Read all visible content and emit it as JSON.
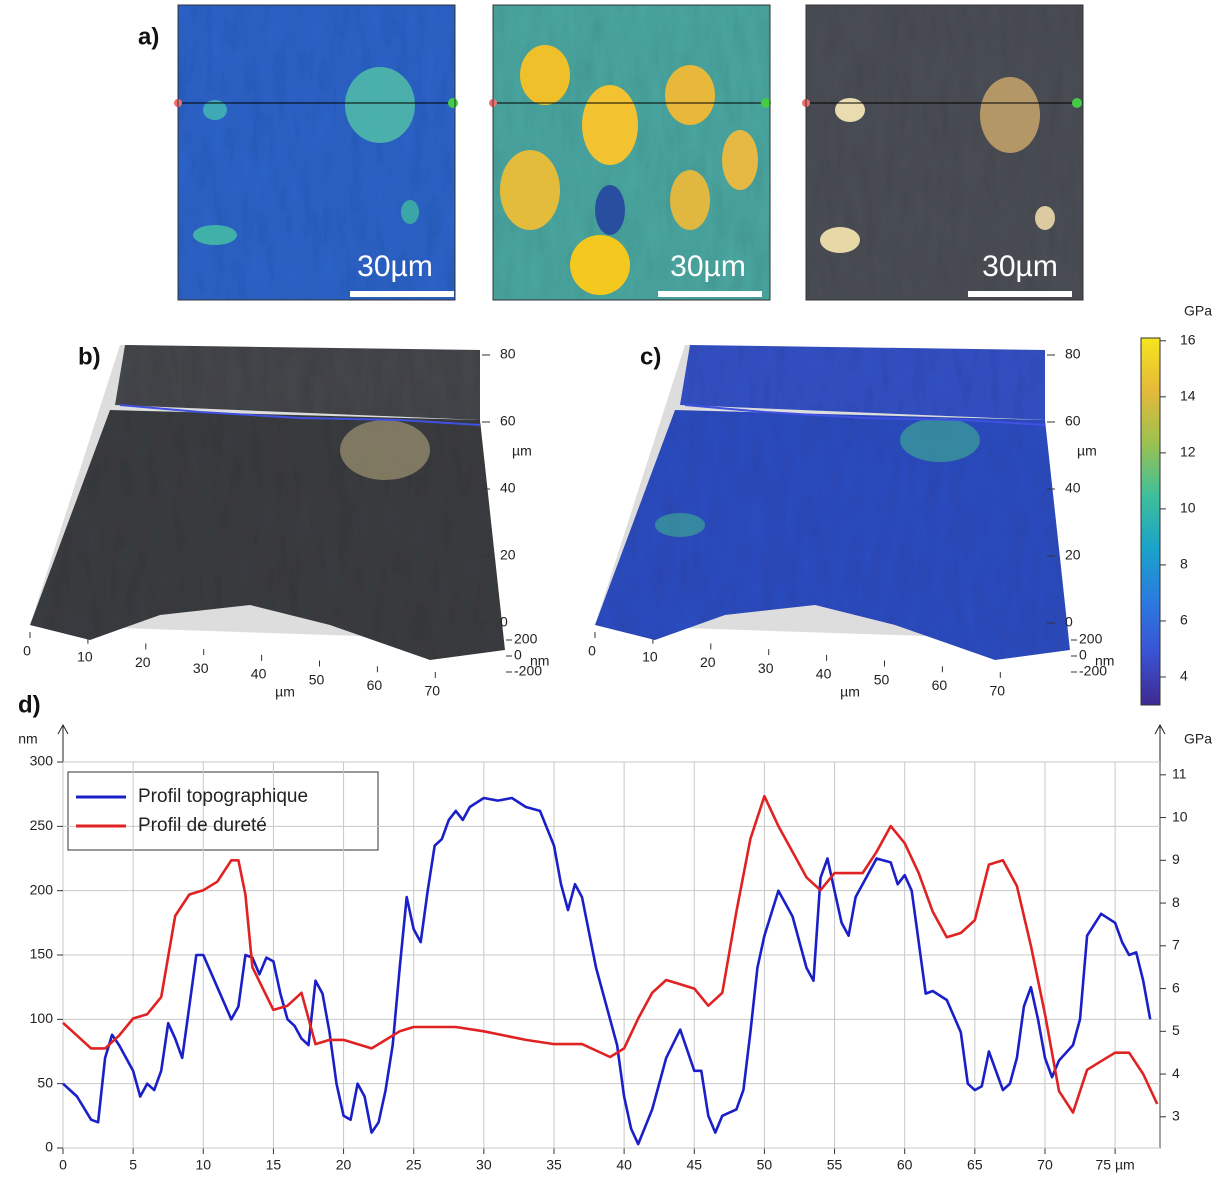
{
  "figure": {
    "panel_a": {
      "label": "a)",
      "scale_bars": [
        "30µm",
        "30µm",
        "30µm"
      ]
    },
    "panel_b": {
      "label": "b)",
      "x_ticks": [
        0,
        10,
        20,
        30,
        40,
        50,
        60,
        70
      ],
      "x_label": "µm",
      "y_ticks": [
        0,
        20,
        40,
        60,
        80
      ],
      "y_label": "µm",
      "z_ticks": [
        -200,
        0,
        200
      ],
      "z_label": "nm"
    },
    "panel_c": {
      "label": "c)",
      "x_ticks": [
        0,
        10,
        20,
        30,
        40,
        50,
        60,
        70
      ],
      "x_label": "µm",
      "y_ticks": [
        0,
        20,
        40,
        60,
        80
      ],
      "y_label": "µm",
      "z_ticks": [
        -200,
        0,
        200
      ],
      "z_label": "nm"
    },
    "panel_d": {
      "label": "d)"
    }
  },
  "chart_data": [
    {
      "type": "colorbar",
      "title": "GPa",
      "ylim": [
        3,
        16.1
      ],
      "yticks": [
        4,
        6,
        8,
        10,
        12,
        14,
        16
      ],
      "colors": [
        "#3e2a8f",
        "#3a53d4",
        "#2b7be0",
        "#1aa3c8",
        "#3fbf9a",
        "#9cc150",
        "#e5b93a",
        "#f6e51c"
      ]
    },
    {
      "type": "line",
      "y_label": "nm",
      "y2_label": "GPa",
      "xlim": [
        0,
        78.2
      ],
      "xticks": [
        0,
        5,
        10,
        15,
        20,
        25,
        30,
        35,
        40,
        45,
        50,
        55,
        60,
        65,
        70,
        {
          "value": 75,
          "label": "75 µm"
        }
      ],
      "ylim": [
        0,
        300
      ],
      "yticks": [
        0,
        50,
        100,
        150,
        200,
        250,
        300
      ],
      "y2lim": [
        2.27,
        11.3
      ],
      "y2ticks": [
        3,
        4,
        5,
        6,
        7,
        8,
        9,
        10,
        11
      ],
      "grid": true,
      "legend": "upper left",
      "series": [
        {
          "name": "Profil topographique",
          "color": "#1a1fc8",
          "x": [
            0,
            1,
            2,
            2.5,
            3,
            3.5,
            4,
            5,
            5.5,
            6,
            6.5,
            7,
            7.5,
            8,
            8.5,
            9,
            9.5,
            10,
            11,
            12,
            12.5,
            13,
            13.5,
            14,
            14.5,
            15,
            15.5,
            16,
            16.5,
            17,
            17.5,
            18,
            18.5,
            19,
            19.5,
            20,
            20.5,
            21,
            21.5,
            22,
            22.5,
            23,
            23.5,
            24,
            24.5,
            25,
            25.5,
            26,
            26.5,
            27,
            27.5,
            28,
            28.5,
            29,
            30,
            31,
            32,
            33,
            34,
            35,
            35.5,
            36,
            36.5,
            37,
            38,
            39,
            39.5,
            40,
            40.5,
            41,
            42,
            43,
            44,
            45,
            45.5,
            46,
            46.5,
            47,
            48,
            48.5,
            49,
            49.5,
            50,
            51,
            52,
            53,
            53.5,
            54,
            54.5,
            55,
            55.5,
            56,
            56.5,
            57,
            58,
            59,
            59.5,
            60,
            60.5,
            61,
            61.5,
            62,
            63,
            64,
            64.5,
            65,
            65.5,
            66,
            66.5,
            67,
            67.5,
            68,
            68.5,
            69,
            69.5,
            70,
            70.5,
            71,
            72,
            72.5,
            73,
            74,
            75,
            75.5,
            76,
            76.5,
            77,
            77.5
          ],
          "values": [
            50,
            40,
            22,
            20,
            70,
            88,
            80,
            60,
            40,
            50,
            45,
            60,
            97,
            85,
            70,
            110,
            150,
            150,
            125,
            100,
            110,
            150,
            148,
            135,
            148,
            145,
            120,
            100,
            95,
            85,
            80,
            130,
            120,
            90,
            50,
            25,
            22,
            50,
            40,
            12,
            20,
            45,
            80,
            140,
            195,
            170,
            160,
            200,
            235,
            240,
            255,
            262,
            255,
            265,
            272,
            270,
            272,
            265,
            262,
            235,
            205,
            185,
            205,
            195,
            140,
            100,
            80,
            40,
            15,
            3,
            30,
            70,
            92,
            60,
            60,
            25,
            12,
            25,
            30,
            45,
            90,
            140,
            165,
            200,
            180,
            140,
            130,
            210,
            225,
            200,
            175,
            165,
            195,
            205,
            225,
            222,
            205,
            212,
            200,
            160,
            120,
            122,
            115,
            90,
            50,
            45,
            48,
            75,
            60,
            45,
            50,
            70,
            110,
            125,
            100,
            70,
            55,
            68,
            80,
            100,
            165,
            182,
            175,
            160,
            150,
            152,
            130,
            100
          ]
        },
        {
          "name": "Profil de dureté",
          "color": "#e02222",
          "axis": "y2",
          "x": [
            0,
            1,
            2,
            3,
            4,
            5,
            6,
            7,
            8,
            9,
            10,
            11,
            12,
            12.5,
            13,
            13.5,
            15,
            16,
            17,
            18,
            19,
            20,
            21,
            22,
            23,
            24,
            25,
            28,
            30,
            33,
            35,
            37,
            39,
            40,
            41,
            42,
            43,
            44,
            45,
            46,
            47,
            48,
            49,
            50,
            51,
            52,
            53,
            54,
            55,
            56,
            57,
            58,
            59,
            60,
            61,
            62,
            63,
            64,
            65,
            66,
            67,
            68,
            69,
            70,
            71,
            72,
            73,
            74,
            75,
            76,
            77,
            78
          ],
          "values": [
            5.2,
            4.9,
            4.6,
            4.6,
            4.9,
            5.3,
            5.4,
            5.8,
            7.7,
            8.2,
            8.3,
            8.5,
            9.0,
            9.0,
            8.2,
            6.5,
            5.5,
            5.6,
            5.9,
            4.7,
            4.8,
            4.8,
            4.7,
            4.6,
            4.8,
            5.0,
            5.1,
            5.1,
            5.0,
            4.8,
            4.7,
            4.7,
            4.4,
            4.6,
            5.3,
            5.9,
            6.2,
            6.1,
            6.0,
            5.6,
            5.9,
            7.8,
            9.5,
            10.5,
            9.8,
            9.2,
            8.6,
            8.3,
            8.7,
            8.7,
            8.7,
            9.2,
            9.8,
            9.4,
            8.7,
            7.8,
            7.2,
            7.3,
            7.6,
            8.9,
            9.0,
            8.4,
            7.0,
            5.4,
            3.6,
            3.1,
            4.1,
            4.3,
            4.5,
            4.5,
            4.0,
            3.3
          ]
        }
      ]
    }
  ]
}
